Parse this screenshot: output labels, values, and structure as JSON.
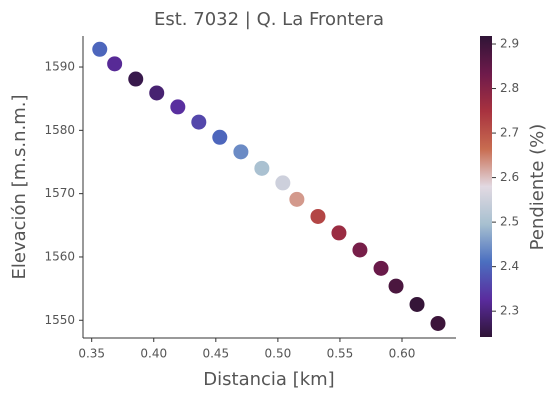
{
  "chart_data": {
    "type": "scatter",
    "title": "Est. 7032 | Q. La Frontera",
    "xlabel": "Distancia [km]",
    "ylabel": "Elevación [m.s.n.m.]",
    "colorbar_label": "Pendiente (%)",
    "x": [
      0.3565,
      0.3685,
      0.3855,
      0.4024,
      0.4194,
      0.4363,
      0.4532,
      0.4702,
      0.4871,
      0.504,
      0.5153,
      0.5323,
      0.5492,
      0.5661,
      0.5831,
      0.5952,
      0.6121,
      0.629
    ],
    "values": [
      1592.8,
      1590.5,
      1588.1,
      1585.9,
      1583.7,
      1581.3,
      1578.9,
      1576.6,
      1574.0,
      1571.7,
      1569.1,
      1566.4,
      1563.8,
      1561.1,
      1558.2,
      1555.4,
      1552.5,
      1549.5
    ],
    "c": [
      2.4,
      2.32,
      2.26,
      2.29,
      2.33,
      2.36,
      2.4,
      2.44,
      2.5,
      2.55,
      2.63,
      2.72,
      2.77,
      2.82,
      2.84,
      2.88,
      2.91,
      2.9
    ],
    "xlim": [
      0.343,
      0.6435
    ],
    "xticks": [
      0.35,
      {
        "value": 0.4,
        "label": "0.40"
      },
      0.45,
      {
        "value": 0.5,
        "label": "0.50"
      },
      0.55,
      {
        "value": 0.6,
        "label": "0.60"
      }
    ],
    "ylim": [
      1547.2,
      1594.9
    ],
    "yticks": [
      1550,
      1560,
      1570,
      1580,
      1590
    ],
    "clim": [
      2.242,
      2.918
    ],
    "cticks": [
      2.3,
      2.4,
      2.5,
      2.6,
      2.7,
      2.8,
      2.9
    ],
    "colormap": [
      "#2f1436",
      "#5a2c9e",
      "#4b6fc0",
      "#a7c0d0",
      "#e2d9e2",
      "#c86c50",
      "#a8323f",
      "#6e1a4b",
      "#2f1436"
    ]
  }
}
